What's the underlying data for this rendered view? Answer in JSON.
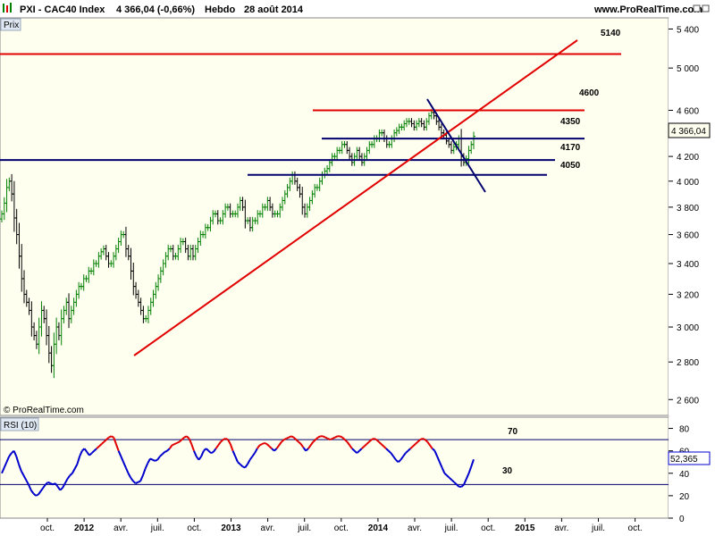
{
  "header": {
    "instrument": "PXI - CAC40 Index",
    "last_change": "4 366,04 (-0,66%)",
    "period": "Hebdo",
    "date": "28 août 2014",
    "site": "www.ProRealTime.com"
  },
  "price_panel": {
    "tab_label": "Prix",
    "current_value_label": "4 366,04",
    "watermark": "© ProRealTime.com"
  },
  "rsi_panel": {
    "label": "RSI (10)",
    "current_value_label": "52,365"
  },
  "chart_data": [
    {
      "type": "ohlc",
      "scale": "log",
      "ylim": [
        2520,
        5520
      ],
      "y_ticks": [
        {
          "value": 2600,
          "label": "2 600"
        },
        {
          "value": 2800,
          "label": "2 800"
        },
        {
          "value": 3000,
          "label": "3 000"
        },
        {
          "value": 3200,
          "label": "3 200"
        },
        {
          "value": 3400,
          "label": "3 400"
        },
        {
          "value": 3600,
          "label": "3 600"
        },
        {
          "value": 3800,
          "label": "3 800"
        },
        {
          "value": 4000,
          "label": "4 000"
        },
        {
          "value": 4200,
          "label": "4 200"
        },
        {
          "value": 4400,
          "label": "4 400"
        },
        {
          "value": 4600,
          "label": "4 600"
        },
        {
          "value": 5000,
          "label": "5 000"
        },
        {
          "value": 5400,
          "label": "5 400"
        }
      ],
      "x_ticks": [
        {
          "date": "2011-10",
          "label": "oct."
        },
        {
          "date": "2012-01",
          "label": "2012"
        },
        {
          "date": "2012-04",
          "label": "avr."
        },
        {
          "date": "2012-07",
          "label": "juil."
        },
        {
          "date": "2012-10",
          "label": "oct."
        },
        {
          "date": "2013-01",
          "label": "2013"
        },
        {
          "date": "2013-04",
          "label": "avr."
        },
        {
          "date": "2013-07",
          "label": "juil."
        },
        {
          "date": "2013-10",
          "label": "oct."
        },
        {
          "date": "2014-01",
          "label": "2014"
        },
        {
          "date": "2014-04",
          "label": "avr."
        },
        {
          "date": "2014-07",
          "label": "juil."
        },
        {
          "date": "2014-10",
          "label": "oct."
        },
        {
          "date": "2015-01",
          "label": "2015"
        },
        {
          "date": "2015-04",
          "label": "avr."
        },
        {
          "date": "2015-07",
          "label": "juil."
        },
        {
          "date": "2015-10",
          "label": "oct."
        }
      ],
      "closes": [
        3750,
        3830,
        3950,
        4000,
        3900,
        3720,
        3600,
        3450,
        3300,
        3200,
        3150,
        3100,
        3000,
        2950,
        2900,
        3000,
        3100,
        3050,
        2950,
        2850,
        2780,
        2900,
        3000,
        2950,
        3050,
        3100,
        3150,
        3050,
        3100,
        3150,
        3200,
        3250,
        3250,
        3300,
        3300,
        3350,
        3350,
        3400,
        3400,
        3450,
        3480,
        3500,
        3450,
        3400,
        3400,
        3450,
        3500,
        3550,
        3600,
        3600,
        3500,
        3450,
        3350,
        3250,
        3200,
        3150,
        3100,
        3050,
        3050,
        3100,
        3150,
        3200,
        3250,
        3300,
        3350,
        3400,
        3450,
        3500,
        3500,
        3450,
        3450,
        3500,
        3550,
        3550,
        3500,
        3450,
        3500,
        3450,
        3500,
        3550,
        3600,
        3600,
        3650,
        3650,
        3700,
        3750,
        3750,
        3700,
        3700,
        3750,
        3800,
        3800,
        3750,
        3750,
        3750,
        3800,
        3850,
        3800,
        3700,
        3700,
        3650,
        3700,
        3700,
        3750,
        3750,
        3800,
        3800,
        3850,
        3800,
        3750,
        3750,
        3750,
        3800,
        3850,
        3900,
        3950,
        4000,
        4050,
        4000,
        3950,
        3900,
        3800,
        3750,
        3800,
        3850,
        3900,
        3950,
        3950,
        4000,
        4050,
        4080,
        4100,
        4150,
        4200,
        4200,
        4250,
        4250,
        4300,
        4300,
        4250,
        4200,
        4150,
        4200,
        4250,
        4200,
        4150,
        4200,
        4250,
        4300,
        4300,
        4350,
        4350,
        4400,
        4400,
        4350,
        4300,
        4300,
        4350,
        4400,
        4420,
        4450,
        4450,
        4480,
        4500,
        4500,
        4480,
        4450,
        4480,
        4500,
        4480,
        4450,
        4500,
        4550,
        4580,
        4550,
        4500,
        4450,
        4400,
        4380,
        4330,
        4300,
        4250,
        4280,
        4300,
        4350,
        4200,
        4150,
        4180,
        4250,
        4300,
        4370
      ],
      "levels": [
        {
          "label": "5140",
          "value": 5140,
          "color": "#e00000"
        },
        {
          "label": "4600",
          "value": 4600,
          "color": "#e00000"
        },
        {
          "label": "4350",
          "value": 4350,
          "color": "#00006e"
        },
        {
          "label": "4170",
          "value": 4170,
          "color": "#00006e"
        },
        {
          "label": "4050",
          "value": 4050,
          "color": "#00006e"
        }
      ],
      "colors": {
        "up": "#008000",
        "down": "#000000",
        "support": "#e00000",
        "resistance": "#00006e",
        "current_box": "#fffff0"
      }
    },
    {
      "type": "line",
      "title": "RSI (10)",
      "ylim": [
        0,
        90
      ],
      "y_ticks": [
        0,
        20,
        40,
        60,
        80
      ],
      "reference_lines": [
        {
          "label": "70",
          "value": 70
        },
        {
          "label": "30",
          "value": 30
        }
      ],
      "current_value": 52.365,
      "values": [
        40,
        45,
        50,
        55,
        58,
        60,
        55,
        48,
        42,
        38,
        34,
        30,
        25,
        22,
        20,
        21,
        24,
        27,
        30,
        32,
        31,
        30,
        31,
        28,
        25,
        27,
        31,
        35,
        38,
        40,
        44,
        48,
        55,
        60,
        62,
        59,
        56,
        58,
        60,
        62,
        64,
        66,
        68,
        70,
        72,
        73,
        72,
        66,
        60,
        55,
        50,
        45,
        40,
        36,
        33,
        31,
        32,
        33,
        38,
        44,
        49,
        53,
        52,
        51,
        52,
        55,
        57,
        59,
        60,
        62,
        65,
        66,
        67,
        68,
        70,
        72,
        73,
        71,
        66,
        60,
        55,
        52,
        55,
        60,
        62,
        60,
        58,
        59,
        62,
        65,
        68,
        70,
        71,
        70,
        66,
        60,
        55,
        50,
        48,
        46,
        45,
        48,
        52,
        55,
        58,
        62,
        65,
        66,
        67,
        66,
        64,
        62,
        60,
        62,
        65,
        68,
        70,
        71,
        72,
        73,
        72,
        70,
        68,
        66,
        63,
        60,
        62,
        65,
        68,
        70,
        72,
        73,
        73,
        72,
        71,
        70,
        71,
        72,
        73,
        73,
        72,
        70,
        68,
        65,
        62,
        60,
        58,
        60,
        62,
        64,
        66,
        68,
        70,
        71,
        70,
        68,
        66,
        64,
        62,
        60,
        58,
        55,
        52,
        50,
        52,
        55,
        58,
        60,
        62,
        64,
        66,
        68,
        70,
        71,
        70,
        68,
        65,
        62,
        60,
        55,
        50,
        45,
        40,
        38,
        36,
        34,
        32,
        30,
        28,
        28,
        30,
        35,
        40,
        46,
        52.365
      ],
      "color": "#0000cc",
      "color_high": "#e00000"
    }
  ]
}
